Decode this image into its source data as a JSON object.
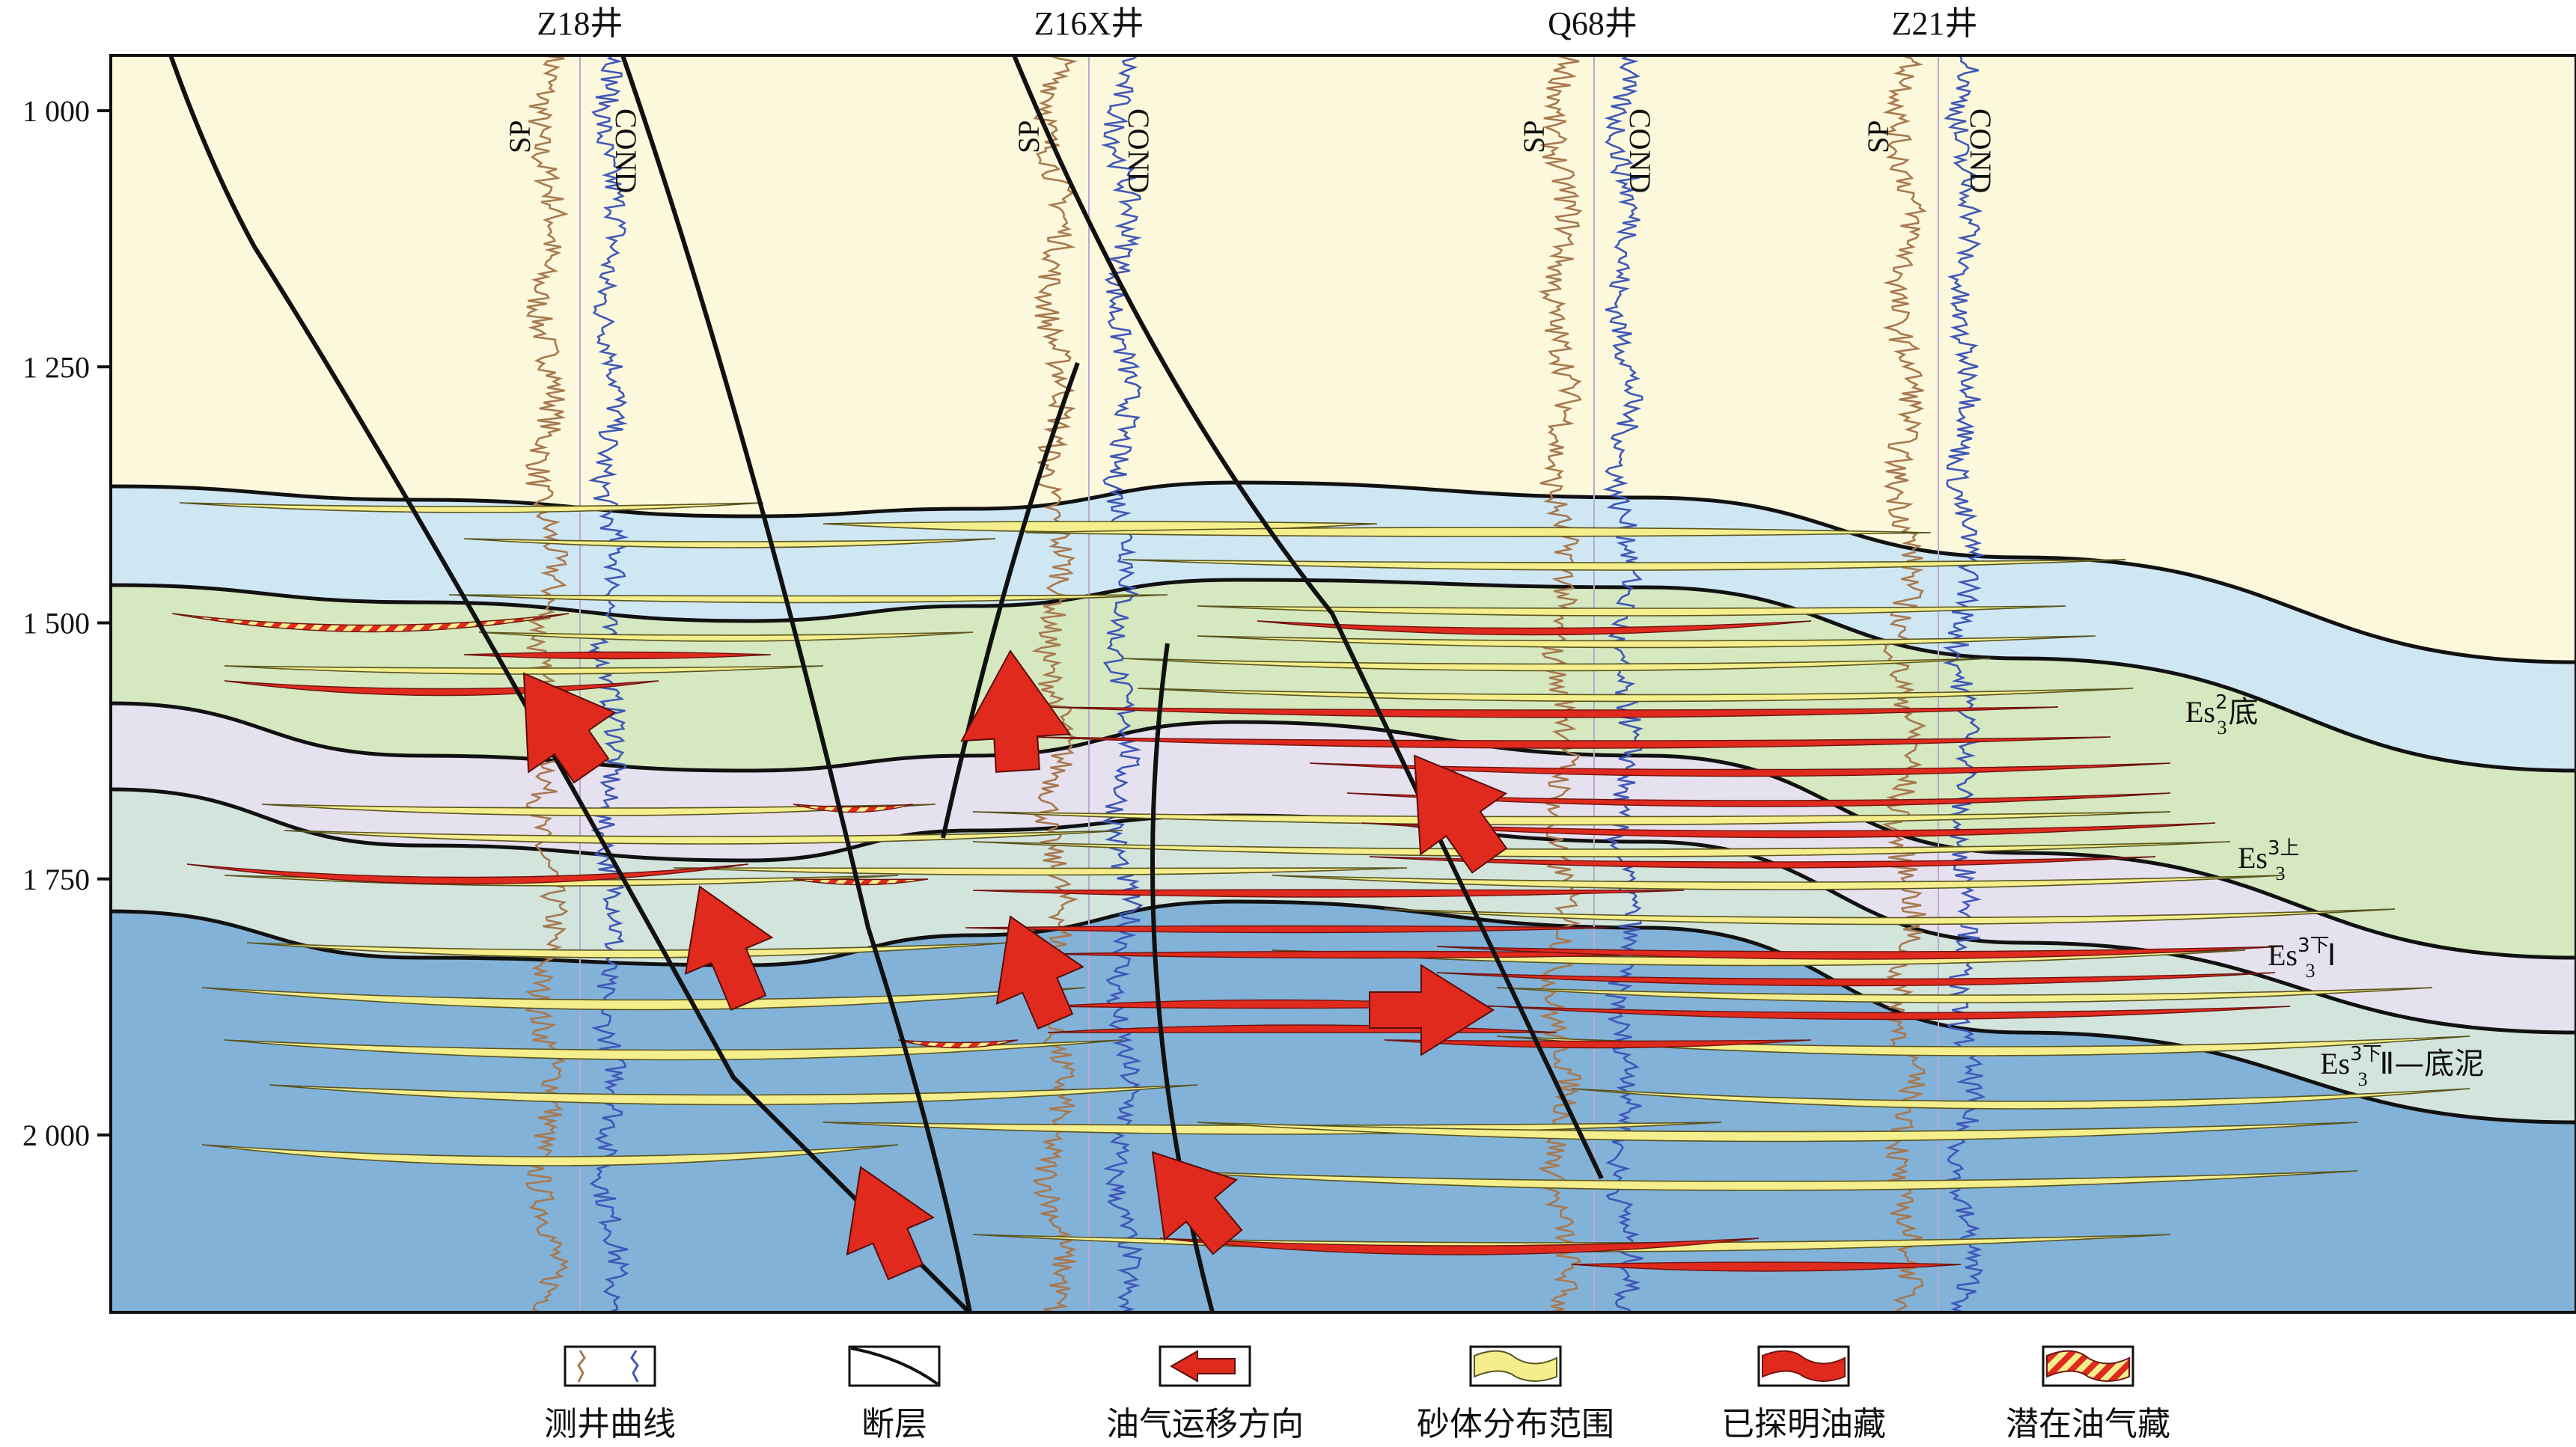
{
  "wells": [
    {
      "name": "Z18井",
      "sp": "SP",
      "cond": "COND"
    },
    {
      "name": "Z16X井",
      "sp": "SP",
      "cond": "COND"
    },
    {
      "name": "Q68井",
      "sp": "SP",
      "cond": "COND"
    },
    {
      "name": "Z21井",
      "sp": "SP",
      "cond": "COND"
    }
  ],
  "depth_axis": {
    "ticks": [
      {
        "value": 1000,
        "label": "1 000"
      },
      {
        "value": 1250,
        "label": "1 250"
      },
      {
        "value": 1500,
        "label": "1 500"
      },
      {
        "value": 1750,
        "label": "1 750"
      },
      {
        "value": 2000,
        "label": "2 000"
      }
    ]
  },
  "layer_labels": [
    {
      "base": "Es",
      "sub": "3",
      "sup": "2",
      "tail": "底"
    },
    {
      "base": "Es",
      "sub": "3",
      "sup": "3上",
      "tail": ""
    },
    {
      "base": "Es",
      "sub": "3",
      "sup": "3下",
      "tail": "Ⅰ"
    },
    {
      "base": "Es",
      "sub": "3",
      "sup": "3下",
      "tail": "Ⅱ—底泥"
    }
  ],
  "legend": [
    {
      "icon": "log-curve-icon",
      "label": "测井曲线"
    },
    {
      "icon": "fault-icon",
      "label": "断层"
    },
    {
      "icon": "migration-arrow-icon",
      "label": "油气运移方向"
    },
    {
      "icon": "sand-body-icon",
      "label": "砂体分布范围"
    },
    {
      "icon": "proven-reservoir-icon",
      "label": "已探明油藏"
    },
    {
      "icon": "potential-reservoir-icon",
      "label": "潜在油气藏"
    }
  ],
  "colors": {
    "upper_strata": "#fcf8dc",
    "es3_2_bottom": "#cfe7f2",
    "es3_3_upper": "#d5e8c0",
    "es3_3_lower_1": "#e6e1ee",
    "es3_3_lower_2": "#d3e4dd",
    "basal_unit": "#82b2d8",
    "sand": "#f4ef8c",
    "reservoir": "#e02a1e",
    "sp_curve": "#a8784e",
    "cond_curve": "#3f57b8"
  }
}
